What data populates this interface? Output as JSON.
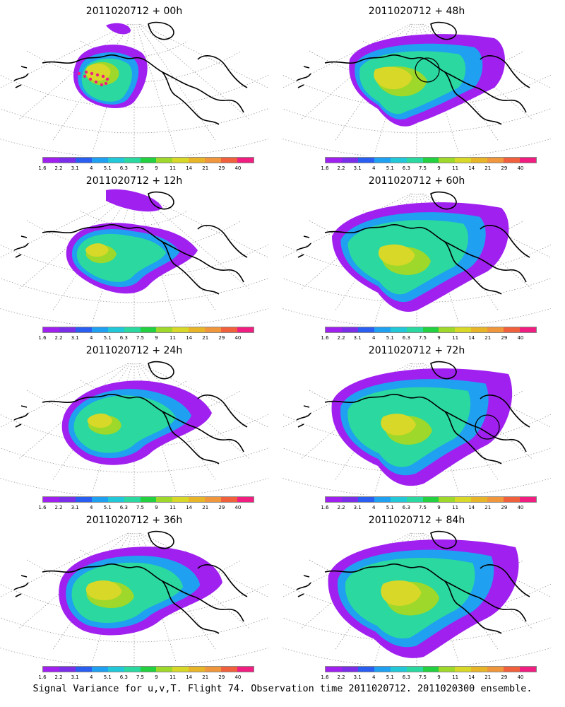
{
  "panels": [
    {
      "title": "2011020712 + 00h"
    },
    {
      "title": "2011020712 + 48h"
    },
    {
      "title": "2011020712 + 12h"
    },
    {
      "title": "2011020712 + 60h"
    },
    {
      "title": "2011020712 + 24h"
    },
    {
      "title": "2011020712 + 72h"
    },
    {
      "title": "2011020712 + 36h"
    },
    {
      "title": "2011020712 + 84h"
    }
  ],
  "colorbar": {
    "labels": [
      "1.6",
      "2.2",
      "3.1",
      "4",
      "5.1",
      "6.3",
      "7.5",
      "9",
      "11",
      "14",
      "21",
      "29",
      "40"
    ],
    "colors": [
      "#a020f0",
      "#7b2ee8",
      "#2a5ef0",
      "#1fa0f0",
      "#22c8d8",
      "#2ad8a0",
      "#22d040",
      "#9ed82a",
      "#d8d828",
      "#e8b428",
      "#f0963c",
      "#f0603c",
      "#f01e80"
    ]
  },
  "caption": "Signal Variance for u,v,T. Flight 74. Observation time 2011020712. 2011020300 ensemble."
}
